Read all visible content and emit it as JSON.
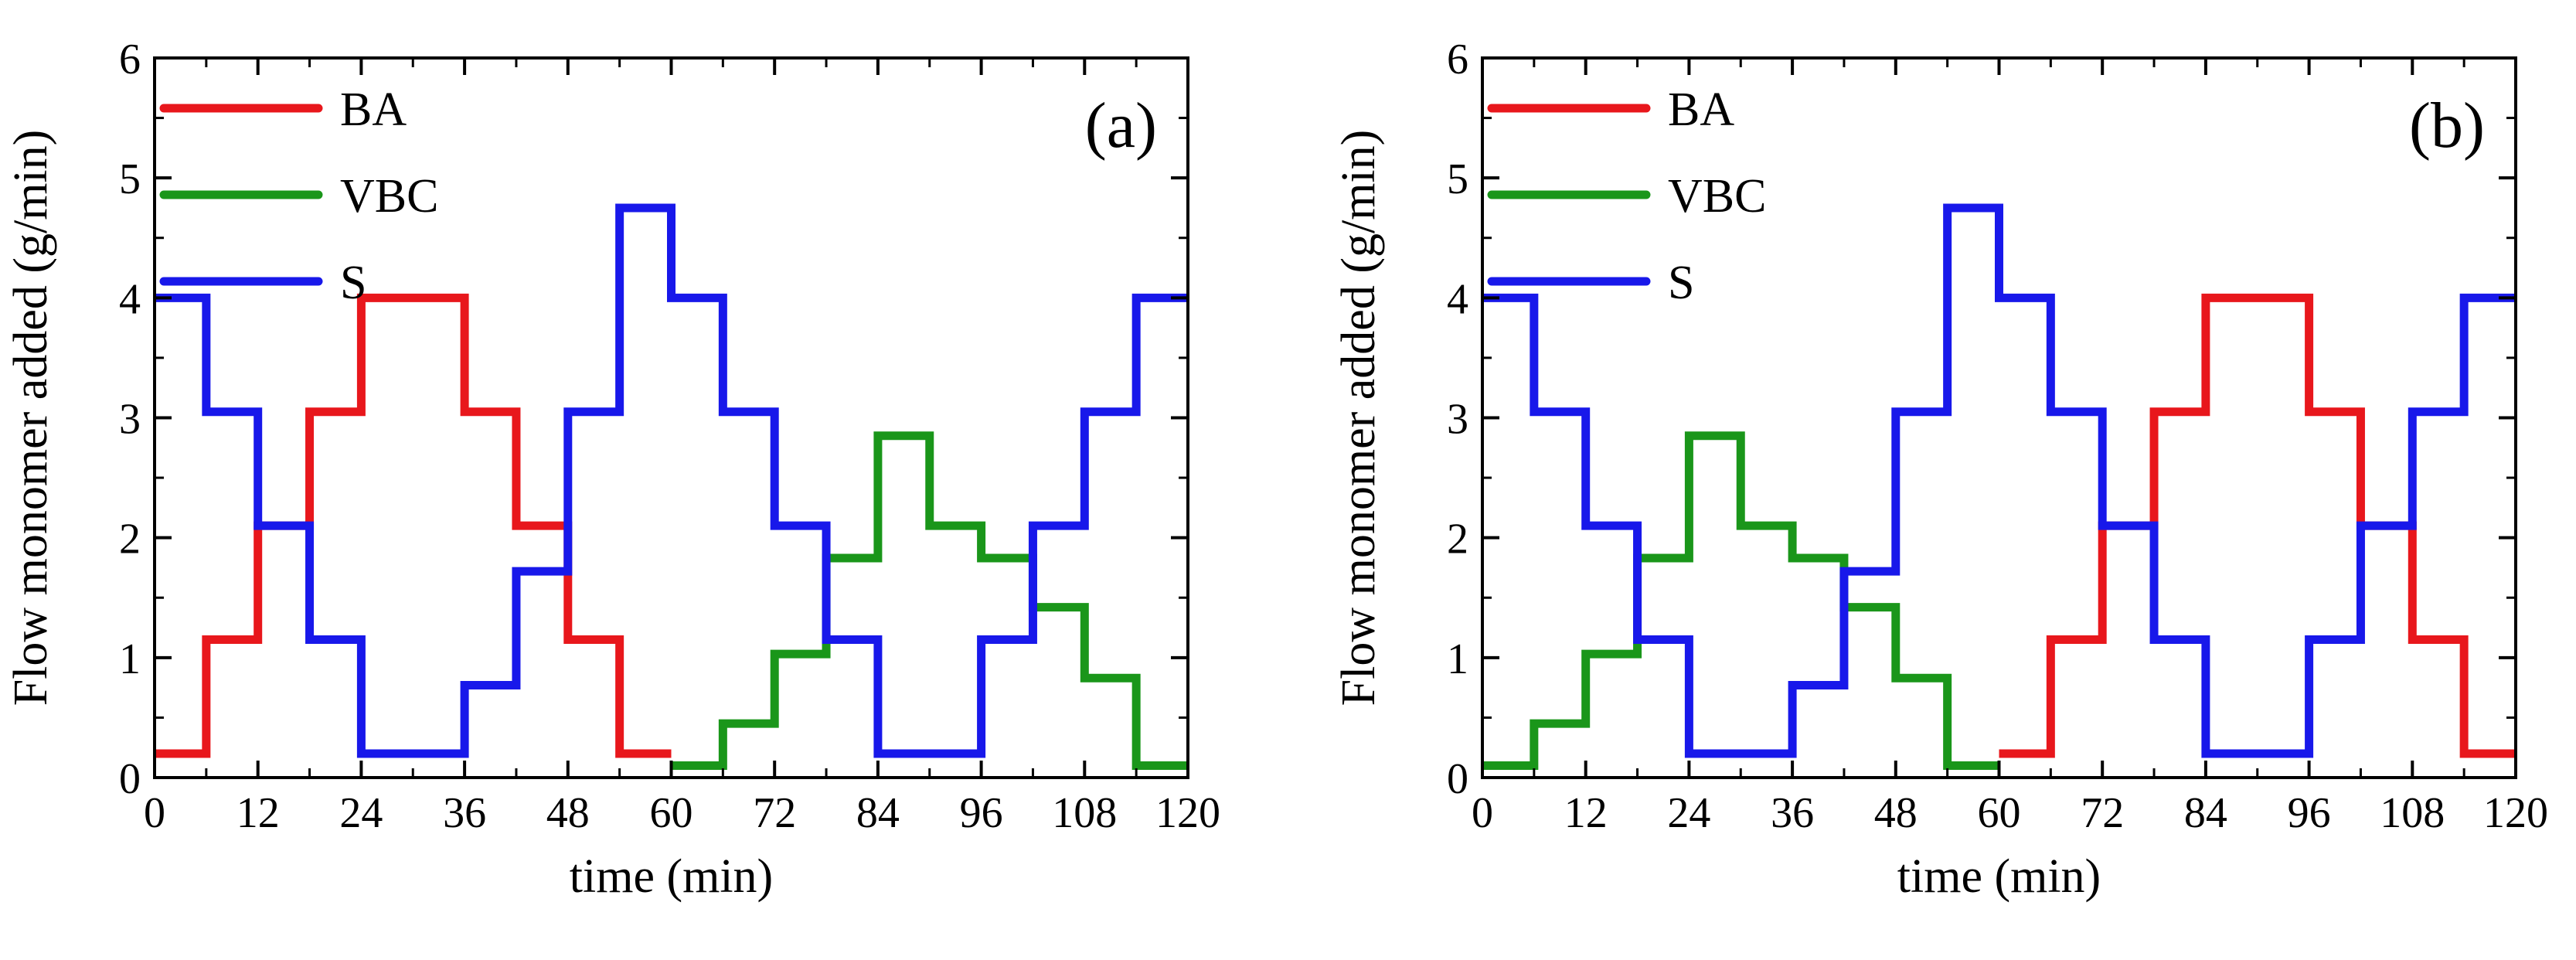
{
  "chart_data": [
    {
      "type": "line",
      "step": "post",
      "panel_label": "(a)",
      "xlabel": "time (min)",
      "ylabel": "Flow monomer added (g/min)",
      "xlim": [
        0,
        120
      ],
      "ylim": [
        0,
        6
      ],
      "xticks": [
        0,
        12,
        24,
        36,
        48,
        60,
        72,
        84,
        96,
        108,
        120
      ],
      "yticks": [
        0,
        1,
        2,
        3,
        4,
        5,
        6
      ],
      "legend_position": "top-left",
      "series": [
        {
          "name": "BA",
          "color": "#e8171c",
          "x": [
            0,
            6,
            12,
            18,
            24,
            36,
            42,
            48,
            54,
            60
          ],
          "y": [
            0.2,
            1.15,
            2.1,
            3.05,
            4.0,
            3.05,
            2.1,
            1.15,
            0.2,
            0.2
          ]
        },
        {
          "name": "VBC",
          "color": "#1a961a",
          "x": [
            60,
            66,
            72,
            78,
            84,
            90,
            96,
            102,
            108,
            114,
            120
          ],
          "y": [
            0.1,
            0.45,
            1.03,
            1.83,
            2.85,
            2.1,
            1.83,
            1.42,
            0.83,
            0.1,
            0.1
          ]
        },
        {
          "name": "S",
          "color": "#1818ea",
          "x": [
            0,
            6,
            12,
            18,
            24,
            36,
            42,
            48,
            54,
            60,
            66,
            72,
            78,
            84,
            96,
            102,
            108,
            114,
            120
          ],
          "y": [
            4.0,
            3.05,
            2.1,
            1.15,
            0.2,
            0.77,
            1.72,
            3.05,
            4.75,
            4.0,
            3.05,
            2.1,
            1.15,
            0.2,
            1.15,
            2.1,
            3.05,
            4.0,
            4.0
          ]
        }
      ]
    },
    {
      "type": "line",
      "step": "post",
      "panel_label": "(b)",
      "xlabel": "time (min)",
      "ylabel": "Flow monomer added (g/min)",
      "xlim": [
        0,
        120
      ],
      "ylim": [
        0,
        6
      ],
      "xticks": [
        0,
        12,
        24,
        36,
        48,
        60,
        72,
        84,
        96,
        108,
        120
      ],
      "yticks": [
        0,
        1,
        2,
        3,
        4,
        5,
        6
      ],
      "legend_position": "top-left",
      "series": [
        {
          "name": "BA",
          "color": "#e8171c",
          "x": [
            60,
            66,
            72,
            78,
            84,
            96,
            102,
            108,
            114,
            120
          ],
          "y": [
            0.2,
            1.15,
            2.1,
            3.05,
            4.0,
            3.05,
            2.1,
            1.15,
            0.2,
            0.2
          ]
        },
        {
          "name": "VBC",
          "color": "#1a961a",
          "x": [
            0,
            6,
            12,
            18,
            24,
            30,
            36,
            42,
            48,
            54,
            60
          ],
          "y": [
            0.1,
            0.45,
            1.03,
            1.83,
            2.85,
            2.1,
            1.83,
            1.42,
            0.83,
            0.1,
            0.1
          ]
        },
        {
          "name": "S",
          "color": "#1818ea",
          "x": [
            0,
            6,
            12,
            18,
            24,
            36,
            42,
            48,
            54,
            60,
            66,
            72,
            78,
            84,
            96,
            102,
            108,
            114,
            120
          ],
          "y": [
            4.0,
            3.05,
            2.1,
            1.15,
            0.2,
            0.77,
            1.72,
            3.05,
            4.75,
            4.0,
            3.05,
            2.1,
            1.15,
            0.2,
            1.15,
            2.1,
            3.05,
            4.0,
            4.0
          ]
        }
      ]
    }
  ]
}
